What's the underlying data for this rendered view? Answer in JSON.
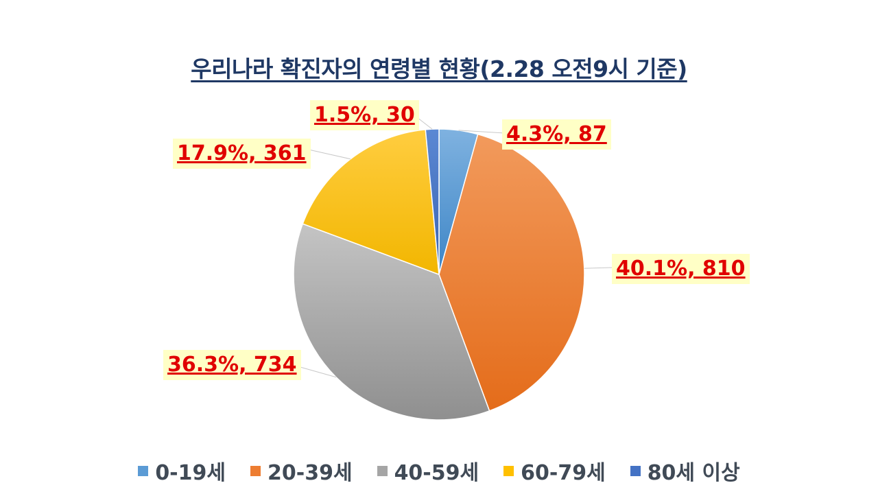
{
  "chart_data": {
    "type": "pie",
    "title": "우리나라 확진자의 연령별 현황(2.28 오전9시 기준)",
    "slices": [
      {
        "name": "0-19세",
        "value": 87,
        "percent": 4.3,
        "label": "4.3%, 87",
        "color": "#5b9bd5"
      },
      {
        "name": "20-39세",
        "value": 810,
        "percent": 40.1,
        "label": "40.1%, 810",
        "color": "#ed7d31"
      },
      {
        "name": "40-59세",
        "value": 734,
        "percent": 36.3,
        "label": "36.3%, 734",
        "color": "#a5a5a5"
      },
      {
        "name": "60-79세",
        "value": 361,
        "percent": 17.9,
        "label": "17.9%, 361",
        "color": "#ffc000"
      },
      {
        "name": "80세 이상",
        "value": 30,
        "percent": 1.5,
        "label": "1.5%, 30",
        "color": "#4472c4"
      }
    ],
    "legend_position": "bottom"
  }
}
